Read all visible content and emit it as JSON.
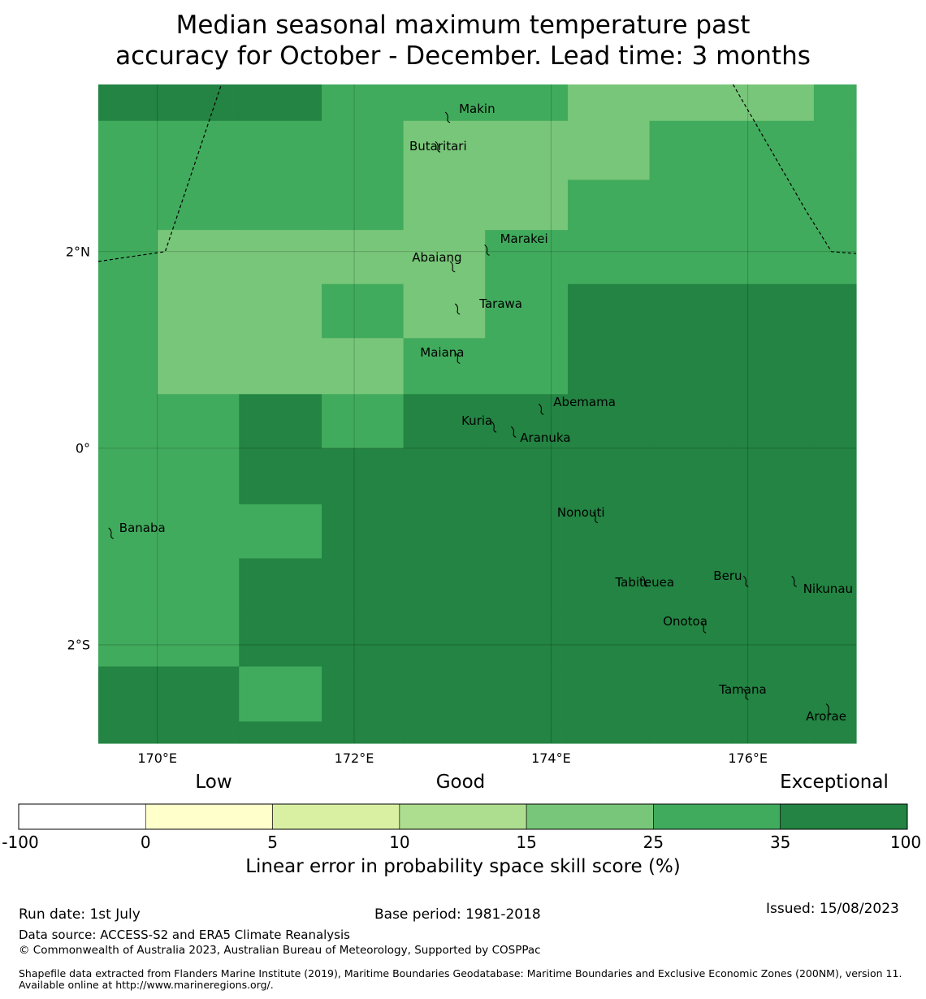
{
  "title": {
    "line1": "Median seasonal maximum temperature past",
    "line2": "accuracy for October - December. Lead time: 3 months"
  },
  "map": {
    "lon_range": [
      169.4,
      177.1
    ],
    "lat_range": [
      -3.0,
      3.7
    ],
    "x_ticks": [
      {
        "value": 170,
        "label": "170°E"
      },
      {
        "value": 172,
        "label": "172°E"
      },
      {
        "value": 174,
        "label": "174°E"
      },
      {
        "value": 176,
        "label": "176°E"
      }
    ],
    "y_ticks": [
      {
        "value": 2,
        "label": "2°N"
      },
      {
        "value": 0,
        "label": "0°"
      },
      {
        "value": -2,
        "label": "2°S"
      }
    ],
    "gridlines": true,
    "cell_lon_edges": [
      169.4,
      170.0,
      170.83,
      171.67,
      172.5,
      173.33,
      174.17,
      175.0,
      175.83,
      176.67,
      177.1
    ],
    "cell_lat_edges": [
      3.7,
      3.33,
      3.0,
      2.73,
      2.22,
      1.67,
      1.12,
      0.55,
      0.0,
      -0.57,
      -1.12,
      -1.67,
      -2.22,
      -2.78,
      -3.0
    ],
    "category_grid": [
      [
        6,
        6,
        6,
        5,
        5,
        5,
        4,
        4,
        4,
        5
      ],
      [
        5,
        5,
        5,
        5,
        4,
        4,
        4,
        5,
        5,
        5
      ],
      [
        5,
        5,
        5,
        5,
        4,
        4,
        4,
        5,
        5,
        5
      ],
      [
        5,
        5,
        5,
        5,
        4,
        4,
        5,
        5,
        5,
        5
      ],
      [
        5,
        4,
        4,
        4,
        4,
        5,
        5,
        5,
        5,
        5
      ],
      [
        5,
        4,
        4,
        5,
        4,
        5,
        6,
        6,
        6,
        6
      ],
      [
        5,
        4,
        4,
        4,
        5,
        5,
        6,
        6,
        6,
        6
      ],
      [
        5,
        5,
        6,
        5,
        6,
        6,
        6,
        6,
        6,
        6
      ],
      [
        5,
        5,
        6,
        6,
        6,
        6,
        6,
        6,
        6,
        6
      ],
      [
        5,
        5,
        5,
        6,
        6,
        6,
        6,
        6,
        6,
        6
      ],
      [
        5,
        5,
        6,
        6,
        6,
        6,
        6,
        6,
        6,
        6
      ],
      [
        5,
        5,
        6,
        6,
        6,
        6,
        6,
        6,
        6,
        6
      ],
      [
        6,
        6,
        5,
        6,
        6,
        6,
        6,
        6,
        6,
        6
      ],
      [
        6,
        6,
        6,
        6,
        6,
        6,
        6,
        6,
        6,
        6
      ]
    ],
    "eez_boundaries": [
      [
        [
          169.4,
          1.9
        ],
        [
          170.08,
          2.0
        ],
        [
          170.65,
          3.7
        ]
      ],
      [
        [
          175.85,
          3.7
        ],
        [
          176.6,
          2.4
        ],
        [
          176.85,
          2.0
        ],
        [
          177.1,
          1.98
        ]
      ]
    ],
    "islands": [
      {
        "name": "Makin",
        "lon": 172.95,
        "lat": 3.37
      },
      {
        "name": "Butaritari",
        "lon": 172.85,
        "lat": 3.07
      },
      {
        "name": "Marakei",
        "lon": 173.35,
        "lat": 2.02
      },
      {
        "name": "Abaiang",
        "lon": 173.0,
        "lat": 1.85
      },
      {
        "name": "Tarawa",
        "lon": 173.05,
        "lat": 1.42
      },
      {
        "name": "Maiana",
        "lon": 173.05,
        "lat": 0.92
      },
      {
        "name": "Abemama",
        "lon": 173.9,
        "lat": 0.4
      },
      {
        "name": "Kuria",
        "lon": 173.42,
        "lat": 0.22
      },
      {
        "name": "Aranuka",
        "lon": 173.62,
        "lat": 0.17
      },
      {
        "name": "Nonouti",
        "lon": 174.45,
        "lat": -0.7
      },
      {
        "name": "Banaba",
        "lon": 169.53,
        "lat": -0.86
      },
      {
        "name": "Tabiteuea",
        "lon": 174.95,
        "lat": -1.35
      },
      {
        "name": "Beru",
        "lon": 175.98,
        "lat": -1.35
      },
      {
        "name": "Nikunau",
        "lon": 176.47,
        "lat": -1.35
      },
      {
        "name": "Onotoa",
        "lon": 175.55,
        "lat": -1.82
      },
      {
        "name": "Tamana",
        "lon": 175.98,
        "lat": -2.5
      },
      {
        "name": "Arorae",
        "lon": 176.82,
        "lat": -2.65
      }
    ]
  },
  "legend": {
    "categories": [
      "Low",
      "Good",
      "Exceptional"
    ],
    "colorbar_ticks": [
      "-100",
      "0",
      "5",
      "10",
      "15",
      "25",
      "35",
      "100"
    ],
    "colors": [
      "#ffffff",
      "#ffffcc",
      "#d9f0a3",
      "#addd8e",
      "#78c679",
      "#41ab5d",
      "#238443"
    ],
    "label": "Linear error in probability space skill score (%)"
  },
  "footer": {
    "run_date": "Run date: 1st July",
    "base_period": "Base period: 1981-2018",
    "issued": "Issued: 15/08/2023",
    "data_source": "Data source: ACCESS-S2 and ERA5 Climate Reanalysis",
    "copyright": "© Commonwealth of Australia 2023, Australian Bureau of Meteorology, Supported by COSPPac",
    "shapefile": "Shapefile data extracted from Flanders Marine Institute (2019), Maritime Boundaries Geodatabase: Maritime Boundaries and Exclusive Economic Zones (200NM), version 11. Available online at http://www.marineregions.org/."
  }
}
